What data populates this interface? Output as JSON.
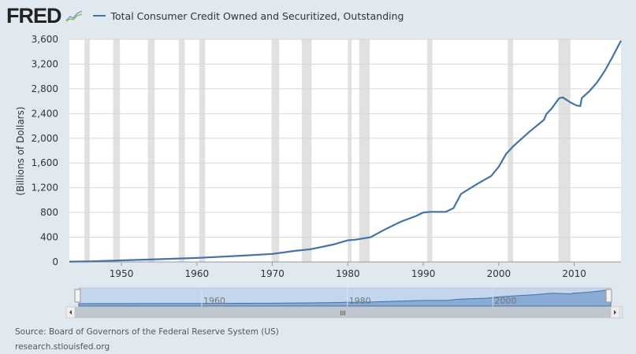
{
  "header": {
    "logo_text": "FRED",
    "logo_icon": "chart-line-icon",
    "legend_label": "Total Consumer Credit Owned and Securitized, Outstanding",
    "series_color": "#4572a7"
  },
  "footer": {
    "source": "Source: Board of Governors of the Federal Reserve System (US)",
    "url": "research.stlouisfed.org"
  },
  "navigator": {
    "labels": [
      "1960",
      "1980",
      "2000"
    ],
    "scroll_grip": "III"
  },
  "chart_data": {
    "type": "line",
    "title": "",
    "xlabel": "",
    "ylabel": "(Billions of Dollars)",
    "xlim": [
      1943.1,
      2016.2
    ],
    "ylim": [
      0,
      3600
    ],
    "yticks": [
      0,
      400,
      800,
      1200,
      1600,
      2000,
      2400,
      2800,
      3200,
      3600
    ],
    "ytick_labels": [
      "0",
      "400",
      "800",
      "1,200",
      "1,600",
      "2,000",
      "2,400",
      "2,800",
      "3,200",
      "3,600"
    ],
    "xticks": [
      1950,
      1960,
      1970,
      1980,
      1990,
      2000,
      2010
    ],
    "grid": "horizontal",
    "legend": "top",
    "recessions": [
      [
        1945.1,
        1945.8
      ],
      [
        1948.9,
        1949.8
      ],
      [
        1953.5,
        1954.4
      ],
      [
        1957.6,
        1958.4
      ],
      [
        1960.3,
        1961.1
      ],
      [
        1969.9,
        1970.9
      ],
      [
        1973.9,
        1975.2
      ],
      [
        1980.0,
        1980.5
      ],
      [
        1981.5,
        1982.9
      ],
      [
        1990.5,
        1991.2
      ],
      [
        2001.2,
        2001.9
      ],
      [
        2007.9,
        2009.5
      ]
    ],
    "series": [
      {
        "x": [
          1943.1,
          1946,
          1950,
          1955,
          1960,
          1965,
          1970,
          1973,
          1975,
          1978,
          1980,
          1981,
          1983,
          1985,
          1987,
          1989,
          1990,
          1991,
          1993,
          1994,
          1995,
          1997,
          1999,
          2000,
          2001,
          2002,
          2004,
          2006,
          2006.3,
          2007,
          2008,
          2008.5,
          2009.5,
          2010.3,
          2010.8,
          2011,
          2012,
          2013,
          2014,
          2015,
          2016.2
        ],
        "y": [
          5,
          10,
          25,
          45,
          65,
          95,
          130,
          180,
          205,
          280,
          350,
          360,
          400,
          530,
          650,
          740,
          800,
          810,
          810,
          870,
          1100,
          1250,
          1390,
          1540,
          1750,
          1880,
          2100,
          2300,
          2390,
          2480,
          2650,
          2660,
          2580,
          2530,
          2520,
          2650,
          2760,
          2900,
          3080,
          3300,
          3580
        ]
      }
    ]
  }
}
